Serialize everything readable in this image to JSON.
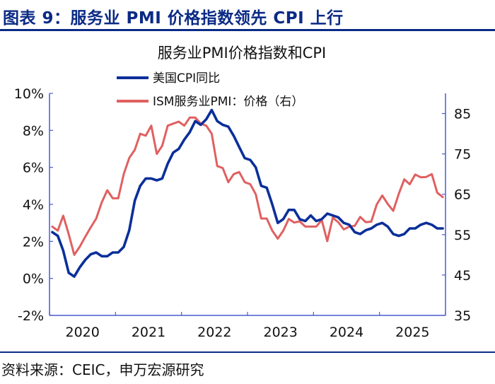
{
  "figure": {
    "title": "图表 9：服务业 PMI 价格指数领先 CPI 上行",
    "source": "资料来源：CEIC，申万宏源研究"
  },
  "colors": {
    "brand": "#0a2a85",
    "cpi": "#0b2f99",
    "pmi": "#e06060",
    "axis": "#4a5ccf",
    "text": "#111111"
  },
  "chart_data": {
    "type": "line",
    "title": "服务业PMI价格指数和CPI",
    "x_start": "2020-01",
    "x_labels": [
      "2020",
      "2021",
      "2022",
      "2023",
      "2024",
      "2025"
    ],
    "xlim": [
      "2020-01",
      "2025-12"
    ],
    "grid": false,
    "legend_position": "top-left",
    "y_left": {
      "ylim": [
        -2,
        10
      ],
      "ticks": [
        -2,
        0,
        2,
        4,
        6,
        8,
        10
      ],
      "tick_labels": [
        "-2%",
        "0%",
        "2%",
        "4%",
        "6%",
        "8%",
        "10%"
      ]
    },
    "y_right": {
      "ylim": [
        35,
        90
      ],
      "ticks": [
        35,
        45,
        55,
        65,
        75,
        85
      ],
      "tick_labels": [
        "35",
        "45",
        "55",
        "65",
        "75",
        "85"
      ]
    },
    "series": [
      {
        "name": "美国CPI同比",
        "axis": "left",
        "color": "#0b2f99",
        "values": [
          2.5,
          2.3,
          1.5,
          0.3,
          0.1,
          0.6,
          1.0,
          1.3,
          1.4,
          1.2,
          1.2,
          1.4,
          1.4,
          1.7,
          2.6,
          4.2,
          5.0,
          5.4,
          5.4,
          5.3,
          5.4,
          6.2,
          6.8,
          7.0,
          7.5,
          7.9,
          8.5,
          8.3,
          8.6,
          9.1,
          8.5,
          8.3,
          8.2,
          7.7,
          7.1,
          6.5,
          6.4,
          6.0,
          5.0,
          4.9,
          4.0,
          3.0,
          3.2,
          3.7,
          3.7,
          3.2,
          3.1,
          3.4,
          3.1,
          3.2,
          3.5,
          3.4,
          3.3,
          3.0,
          2.9,
          2.5,
          2.4,
          2.6,
          2.7,
          2.9,
          3.0,
          2.8,
          2.4,
          2.3,
          2.4,
          2.7,
          2.7,
          2.9,
          3.0,
          2.9,
          2.7,
          2.7
        ]
      },
      {
        "name": "ISM服务业PMI：价格（右）",
        "axis": "right",
        "color": "#e06060",
        "values": [
          57.0,
          56.0,
          59.7,
          55.1,
          50.0,
          52.0,
          54.5,
          56.8,
          59.0,
          63.0,
          66.0,
          64.0,
          64.0,
          70.0,
          74.0,
          76.0,
          80.0,
          79.5,
          82.0,
          75.0,
          77.0,
          82.0,
          82.5,
          83.0,
          82.0,
          84.0,
          84.0,
          82.5,
          82.0,
          80.0,
          72.0,
          71.5,
          68.0,
          70.0,
          70.5,
          68.0,
          67.5,
          65.0,
          59.0,
          59.0,
          56.0,
          54.0,
          56.0,
          58.9,
          58.0,
          58.3,
          57.0,
          57.0,
          57.0,
          58.6,
          53.4,
          59.2,
          58.1,
          56.3,
          57.0,
          57.2,
          59.4,
          58.1,
          58.2,
          62.5,
          64.7,
          62.6,
          60.9,
          65.1,
          68.7,
          67.5,
          69.9,
          69.2,
          69.3,
          70.0,
          65.4,
          64.3
        ]
      }
    ]
  }
}
